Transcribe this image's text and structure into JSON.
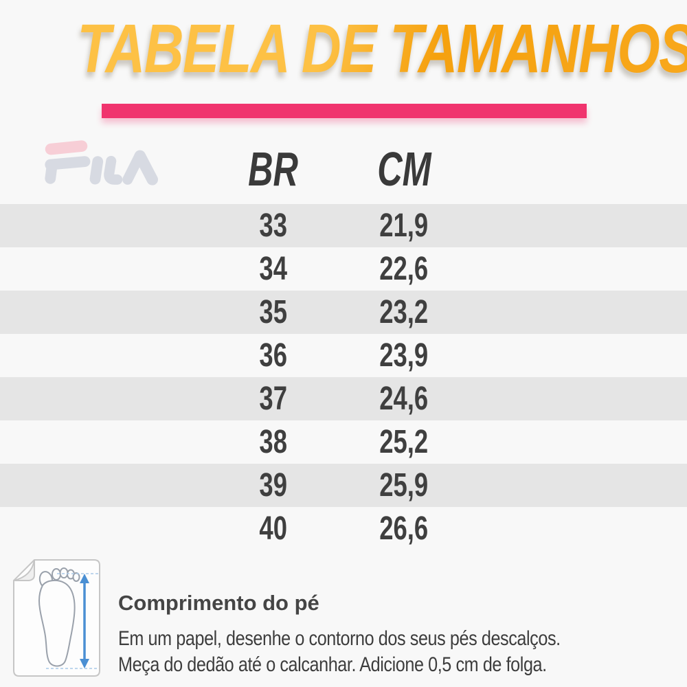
{
  "page": {
    "title": "TABELA DE TAMANHOS",
    "brand": "FILA"
  },
  "chart_data": {
    "type": "table",
    "title": "TABELA DE TAMANHOS",
    "columns": [
      "BR",
      "CM"
    ],
    "rows": [
      [
        "33",
        "21,9"
      ],
      [
        "34",
        "22,6"
      ],
      [
        "35",
        "23,2"
      ],
      [
        "36",
        "23,9"
      ],
      [
        "37",
        "24,6"
      ],
      [
        "38",
        "25,2"
      ],
      [
        "39",
        "25,9"
      ],
      [
        "40",
        "26,6"
      ]
    ]
  },
  "table": {
    "header_br": "BR",
    "header_cm": "CM"
  },
  "instructions": {
    "heading": "Comprimento do pé",
    "line1": "Em um papel, desenhe o contorno dos seus pés descalços.",
    "line2": "Meça do dedão até o calcanhar. Adicione 0,5 cm de folga."
  },
  "icons": {
    "foot": "foot-measure-icon",
    "brand": "fila-logo-watermark"
  },
  "colors": {
    "title_orange": "#F7A61C",
    "title_highlight": "#FDC145",
    "underline_pink": "#F0346E",
    "row_stripe": "#E5E5E5",
    "background": "#F8F8F8",
    "text_dark": "#3F3F3F",
    "logo_gray": "#D7DAE2",
    "logo_pink": "#F7CED6",
    "arrow_blue": "#4A8FD3"
  }
}
